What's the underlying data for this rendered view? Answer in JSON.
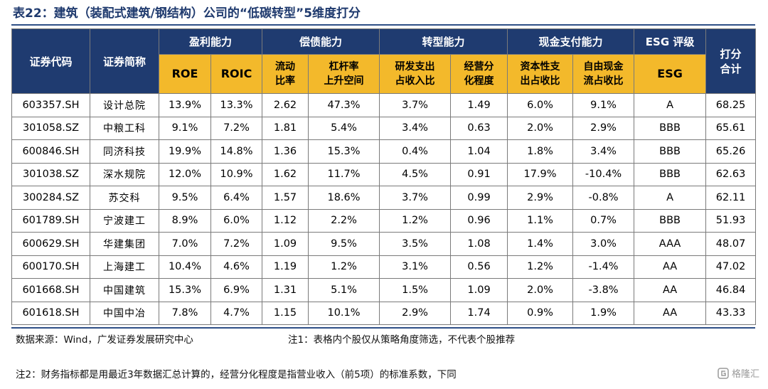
{
  "title": "表22：建筑（装配式建筑/钢结构）公司的“低碳转型”5维度打分",
  "header": {
    "code": "证券代码",
    "name": "证券简称",
    "groups": [
      "盈利能力",
      "偿债能力",
      "转型能力",
      "现金支付能力",
      "ESG 评级"
    ],
    "score_line1": "打分",
    "score_line2": "合计",
    "sub": [
      {
        "l1": "ROE",
        "l2": ""
      },
      {
        "l1": "ROIC",
        "l2": ""
      },
      {
        "l1": "流动",
        "l2": "比率"
      },
      {
        "l1": "杠杆率",
        "l2": "上升空间"
      },
      {
        "l1": "研发支出",
        "l2": "占收入比"
      },
      {
        "l1": "经营分",
        "l2": "化程度"
      },
      {
        "l1": "资本性支",
        "l2": "出占收比"
      },
      {
        "l1": "自由现金",
        "l2": "流占收比"
      },
      {
        "l1": "ESG",
        "l2": ""
      }
    ]
  },
  "rows": [
    [
      "603357.SH",
      "设计总院",
      "13.9%",
      "13.3%",
      "2.62",
      "47.3%",
      "3.7%",
      "1.49",
      "6.0%",
      "9.1%",
      "A",
      "68.25"
    ],
    [
      "301058.SZ",
      "中粮工科",
      "9.1%",
      "7.2%",
      "1.81",
      "5.4%",
      "3.4%",
      "0.63",
      "2.0%",
      "2.9%",
      "BBB",
      "65.61"
    ],
    [
      "600846.SH",
      "同济科技",
      "19.9%",
      "14.8%",
      "1.36",
      "15.3%",
      "0.4%",
      "1.04",
      "1.8%",
      "3.4%",
      "BBB",
      "65.26"
    ],
    [
      "301038.SZ",
      "深水规院",
      "12.0%",
      "10.9%",
      "1.62",
      "11.7%",
      "4.5%",
      "0.91",
      "17.9%",
      "-10.4%",
      "BBB",
      "62.63"
    ],
    [
      "300284.SZ",
      "苏交科",
      "9.5%",
      "6.4%",
      "1.57",
      "18.6%",
      "3.7%",
      "0.99",
      "2.9%",
      "-0.8%",
      "A",
      "62.11"
    ],
    [
      "601789.SH",
      "宁波建工",
      "8.9%",
      "6.0%",
      "1.12",
      "2.2%",
      "1.2%",
      "0.96",
      "1.1%",
      "0.7%",
      "BBB",
      "51.93"
    ],
    [
      "600629.SH",
      "华建集团",
      "7.0%",
      "7.2%",
      "1.09",
      "9.5%",
      "3.5%",
      "1.08",
      "1.4%",
      "3.0%",
      "AAA",
      "48.07"
    ],
    [
      "600170.SH",
      "上海建工",
      "10.4%",
      "4.6%",
      "1.19",
      "1.2%",
      "3.1%",
      "0.56",
      "1.2%",
      "-1.4%",
      "AA",
      "47.02"
    ],
    [
      "601668.SH",
      "中国建筑",
      "15.3%",
      "6.9%",
      "1.31",
      "5.1%",
      "1.5%",
      "1.09",
      "2.0%",
      "-3.8%",
      "AA",
      "46.84"
    ],
    [
      "601618.SH",
      "中国中冶",
      "7.8%",
      "4.7%",
      "1.15",
      "10.1%",
      "2.9%",
      "1.74",
      "0.9%",
      "1.9%",
      "AA",
      "43.33"
    ]
  ],
  "footer": {
    "source": "数据来源：Wind，广发证券发展研究中心",
    "note1": "注1：表格内个股仅从策略角度筛选，不代表个股推荐",
    "note2": "注2：财务指标都是用最近3年数据汇总计算的，经营分化程度是指营业收入（前5项）的标准系数，下同"
  },
  "watermark": {
    "icon": "gelonghui-logo-icon",
    "text": "格隆汇"
  },
  "colors": {
    "header_navy": "#1f3b70",
    "header_gold": "#f3b92b",
    "title": "#1f3a6e"
  }
}
